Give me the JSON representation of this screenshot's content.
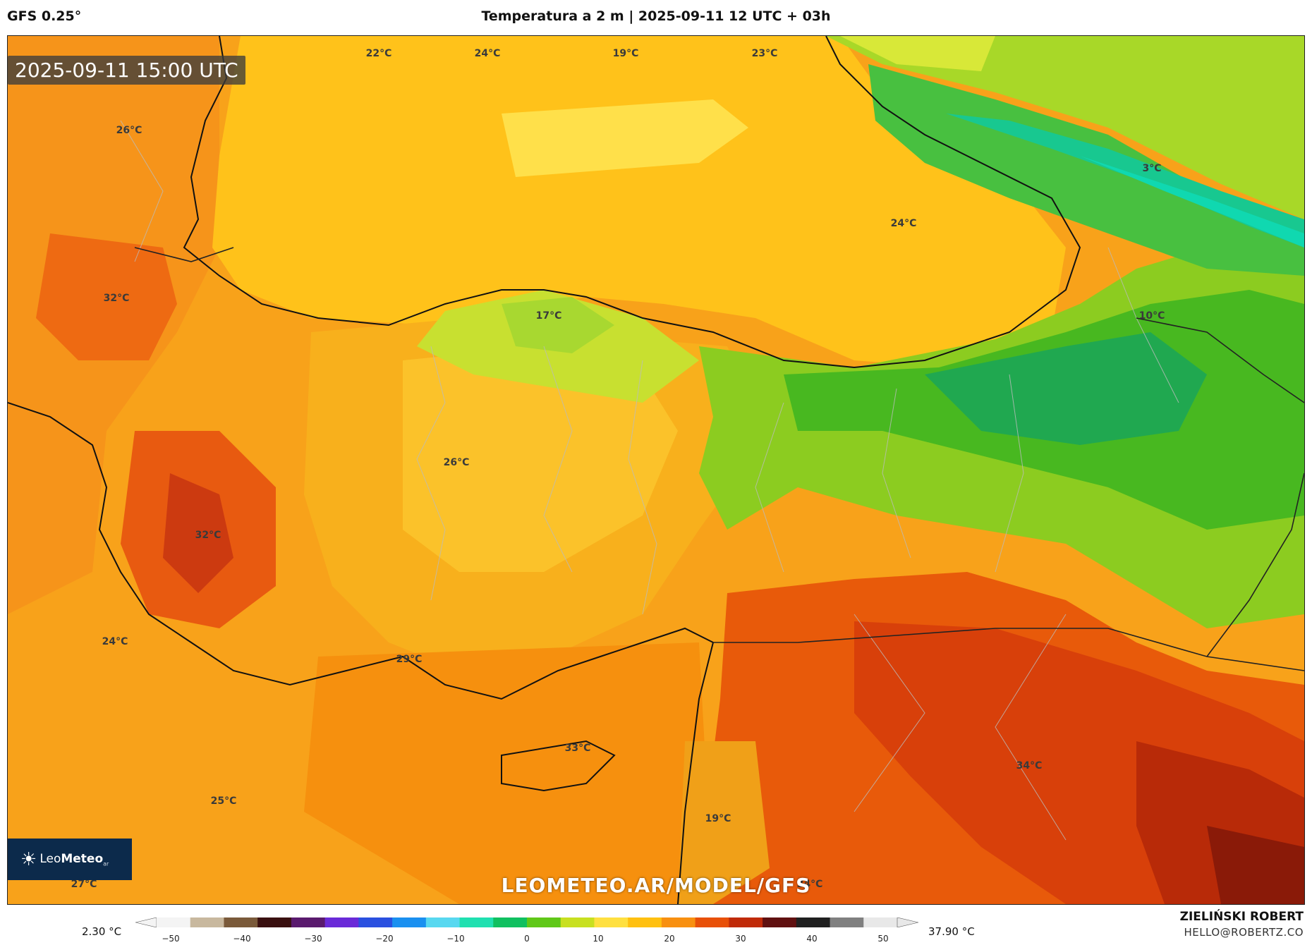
{
  "header": {
    "model": "GFS 0.25°",
    "title": "Temperatura a 2 m | 2025-09-11 12 UTC + 03h"
  },
  "map": {
    "timestamp": "2025-09-11 15:00 UTC",
    "watermark": "LEOMETEO.AR/MODEL/GFS",
    "labels": [
      "22°C",
      "24°C",
      "19°C",
      "23°C",
      "26°C",
      "3°C",
      "24°C",
      "32°C",
      "17°C",
      "10°C",
      "26°C",
      "32°C",
      "24°C",
      "29°C",
      "33°C",
      "34°C",
      "25°C",
      "19°C",
      "27°C",
      "34°C"
    ]
  },
  "logo": {
    "name_light": "Leo",
    "name_bold": "Meteo",
    "suffix": "ar"
  },
  "colorbar": {
    "min_label": "2.30 °C",
    "max_label": "37.90 °C",
    "ticks": [
      "−50",
      "−40",
      "−30",
      "−20",
      "−10",
      "0",
      "10",
      "20",
      "30",
      "40",
      "50"
    ],
    "colors": [
      "#f4f4f4",
      "#c8b89e",
      "#7a5a3a",
      "#3a1010",
      "#5a1a6e",
      "#6a2ad8",
      "#2a50e0",
      "#1a90f0",
      "#58d8f0",
      "#20e0b0",
      "#10c060",
      "#60c818",
      "#c8e020",
      "#ffe040",
      "#ffc010",
      "#f89010",
      "#e85008",
      "#c02a08",
      "#601010",
      "#202020",
      "#808080",
      "#e8e8e8"
    ]
  },
  "credits": {
    "author": "ZIELIŃSKI ROBERT",
    "email": "HELLO@ROBERTZ.CO"
  }
}
